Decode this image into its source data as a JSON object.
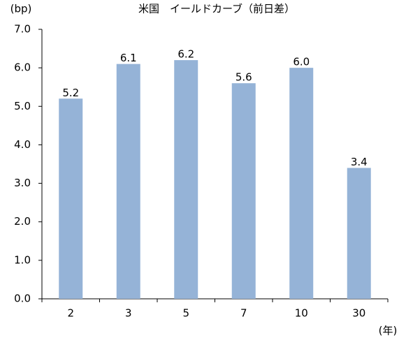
{
  "chart_data": {
    "type": "bar",
    "title": "米国　イールドカーブ（前日差）",
    "y_label": "(bp)",
    "x_label": "(年)",
    "categories": [
      "2",
      "3",
      "5",
      "7",
      "10",
      "30"
    ],
    "values": [
      5.2,
      6.1,
      6.2,
      5.6,
      6.0,
      3.4
    ],
    "value_labels": [
      "5.2",
      "6.1",
      "6.2",
      "5.6",
      "6.0",
      "3.4"
    ],
    "color": "#95b3d7",
    "ylim": [
      0,
      7
    ],
    "yticks": [
      {
        "value": 0,
        "label": "0.0"
      },
      {
        "value": 1,
        "label": "1.0"
      },
      {
        "value": 2,
        "label": "2.0"
      },
      {
        "value": 3,
        "label": "3.0"
      },
      {
        "value": 4,
        "label": "4.0"
      },
      {
        "value": 5,
        "label": "5.0"
      },
      {
        "value": 6,
        "label": "6.0"
      },
      {
        "value": 7,
        "label": "7.0"
      }
    ],
    "grid": false
  }
}
